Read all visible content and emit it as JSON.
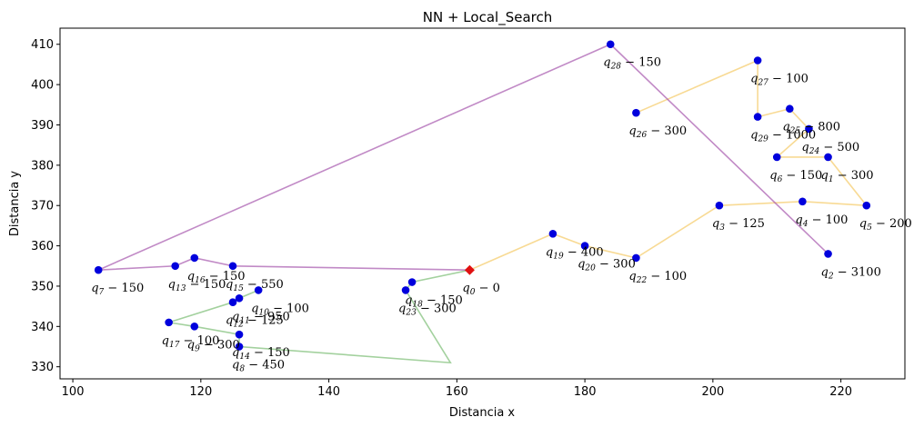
{
  "chart_data": {
    "type": "scatter",
    "title": "NN + Local_Search",
    "xlabel": "Distancia x",
    "ylabel": "Distancia y",
    "xlim": [
      98,
      230
    ],
    "ylim": [
      327,
      414
    ],
    "xticks": [
      100,
      120,
      140,
      160,
      180,
      200,
      220
    ],
    "yticks": [
      330,
      340,
      350,
      360,
      370,
      380,
      390,
      400,
      410
    ],
    "grid": false,
    "depot": {
      "name": "q",
      "sub": "0",
      "demand": "0",
      "x": 162,
      "y": 354
    },
    "points": [
      {
        "sub": "1",
        "demand": "300",
        "x": 218,
        "y": 382
      },
      {
        "sub": "2",
        "demand": "3100",
        "x": 218,
        "y": 358
      },
      {
        "sub": "3",
        "demand": "125",
        "x": 201,
        "y": 370
      },
      {
        "sub": "4",
        "demand": "100",
        "x": 214,
        "y": 371
      },
      {
        "sub": "5",
        "demand": "200",
        "x": 224,
        "y": 370
      },
      {
        "sub": "6",
        "demand": "150",
        "x": 210,
        "y": 382
      },
      {
        "sub": "7",
        "demand": "150",
        "x": 104,
        "y": 354
      },
      {
        "sub": "8",
        "demand": "450",
        "x": 126,
        "y": 335
      },
      {
        "sub": "9",
        "demand": "300",
        "x": 119,
        "y": 340
      },
      {
        "sub": "10",
        "demand": "100",
        "x": 129,
        "y": 349
      },
      {
        "sub": "11",
        "demand": "950",
        "x": 126,
        "y": 347
      },
      {
        "sub": "12",
        "demand": "125",
        "x": 125,
        "y": 346
      },
      {
        "sub": "13",
        "demand": "150",
        "x": 116,
        "y": 355
      },
      {
        "sub": "14",
        "demand": "150",
        "x": 126,
        "y": 338
      },
      {
        "sub": "15",
        "demand": "550",
        "x": 125,
        "y": 355
      },
      {
        "sub": "16",
        "demand": "150",
        "x": 119,
        "y": 357
      },
      {
        "sub": "17",
        "demand": "100",
        "x": 115,
        "y": 341
      },
      {
        "sub": "18",
        "demand": "150",
        "x": 153,
        "y": 351
      },
      {
        "sub": "19",
        "demand": "400",
        "x": 175,
        "y": 363
      },
      {
        "sub": "20",
        "demand": "300",
        "x": 180,
        "y": 360
      },
      {
        "sub": "22",
        "demand": "100",
        "x": 188,
        "y": 357
      },
      {
        "sub": "23",
        "demand": "300",
        "x": 152,
        "y": 349
      },
      {
        "sub": "24",
        "demand": "500",
        "x": 215,
        "y": 389
      },
      {
        "sub": "25",
        "demand": "800",
        "x": 212,
        "y": 394
      },
      {
        "sub": "26",
        "demand": "300",
        "x": 188,
        "y": 393
      },
      {
        "sub": "27",
        "demand": "100",
        "x": 207,
        "y": 406
      },
      {
        "sub": "28",
        "demand": "150",
        "x": 184,
        "y": 410
      },
      {
        "sub": "29",
        "demand": "1000",
        "x": 207,
        "y": 392
      }
    ],
    "routes": [
      {
        "color": "#f5c65b",
        "path": [
          [
            162,
            354
          ],
          [
            175,
            363
          ],
          [
            180,
            360
          ],
          [
            188,
            357
          ],
          [
            201,
            370
          ],
          [
            214,
            371
          ],
          [
            224,
            370
          ],
          [
            218,
            382
          ],
          [
            210,
            382
          ],
          [
            215,
            389
          ],
          [
            212,
            394
          ],
          [
            207,
            392
          ],
          [
            207,
            406
          ],
          [
            188,
            393
          ]
        ]
      },
      {
        "color": "#72b86a",
        "path": [
          [
            162,
            354
          ],
          [
            153,
            351
          ],
          [
            152,
            349
          ],
          [
            159,
            331
          ],
          [
            126,
            335
          ],
          [
            126,
            338
          ],
          [
            119,
            340
          ],
          [
            115,
            341
          ],
          [
            125,
            346
          ],
          [
            126,
            347
          ],
          [
            129,
            349
          ]
        ]
      },
      {
        "color": "#a04ca8",
        "path": [
          [
            162,
            354
          ],
          [
            125,
            355
          ],
          [
            119,
            357
          ],
          [
            116,
            355
          ],
          [
            104,
            354
          ],
          [
            184,
            410
          ],
          [
            218,
            358
          ]
        ]
      }
    ],
    "point_color": "#0000dd",
    "depot_color": "#e01010"
  }
}
